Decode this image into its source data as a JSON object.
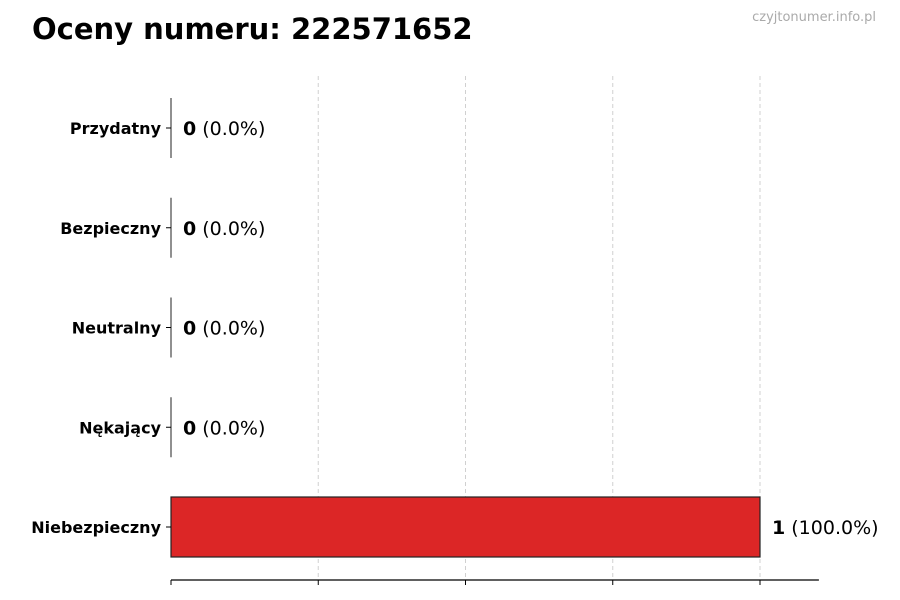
{
  "title": "Oceny numeru: 222571652",
  "watermark": "czyjtonumer.info.pl",
  "chart_data": {
    "type": "bar",
    "orientation": "horizontal",
    "categories": [
      "Przydatny",
      "Bezpieczny",
      "Neutralny",
      "Nękający",
      "Niebezpieczny"
    ],
    "values": [
      0,
      0,
      0,
      0,
      1
    ],
    "percent_labels": [
      "(0.0%)",
      "(0.0%)",
      "(0.0%)",
      "(0.0%)",
      "(100.0%)"
    ],
    "bar_colors": [
      "#22c55e",
      "#3b82f6",
      "#9ca3af",
      "#f97316",
      "#dc2626"
    ],
    "xlim": [
      0,
      1.1
    ],
    "xticks": [
      0,
      0.25,
      0.5,
      0.75,
      1
    ],
    "grid": "x dashed",
    "title": "Oceny numeru: 222571652"
  }
}
